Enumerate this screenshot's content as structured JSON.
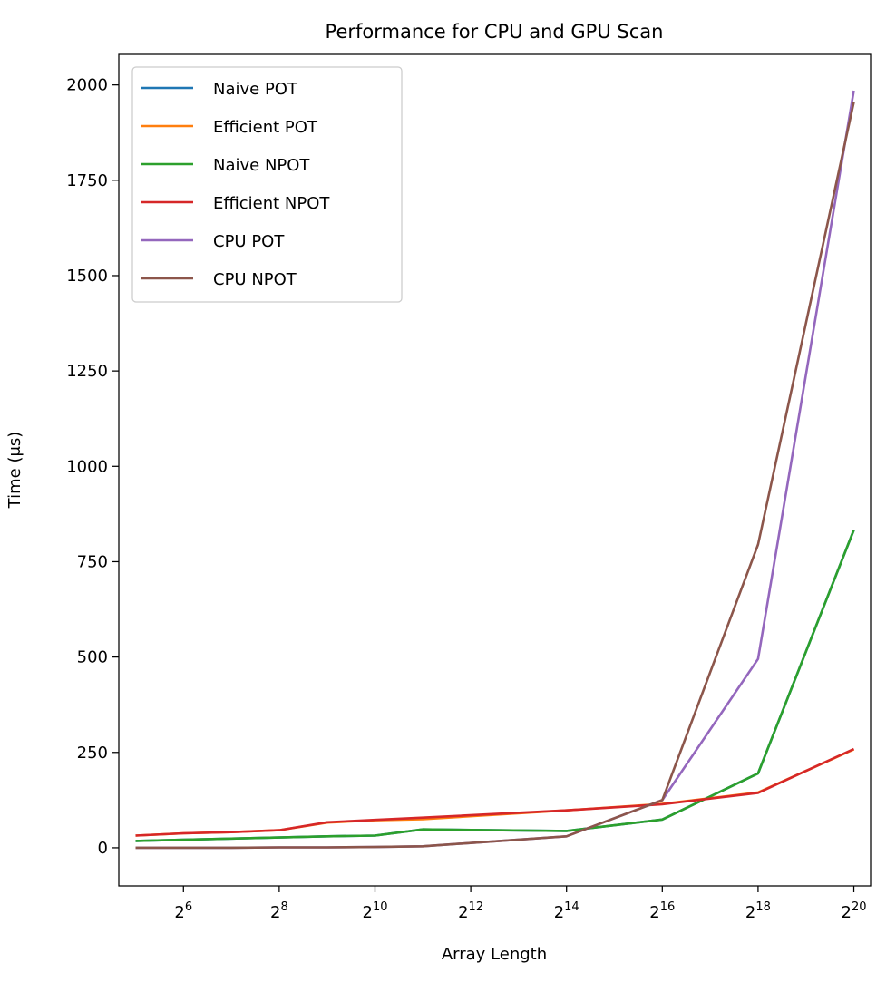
{
  "chart_data": {
    "type": "line",
    "title": "Performance for CPU and GPU Scan",
    "xlabel": "Array Length",
    "ylabel": "Time (μs)",
    "x_scale": "log2",
    "x": [
      32,
      64,
      128,
      256,
      512,
      1024,
      2048,
      4096,
      8192,
      16384,
      32768,
      65536,
      131072,
      262144,
      524288,
      1048576
    ],
    "x_ticks": [
      64,
      256,
      1024,
      4096,
      16384,
      65536,
      262144,
      1048576
    ],
    "x_tick_labels": [
      {
        "base": "2",
        "exp": "6"
      },
      {
        "base": "2",
        "exp": "8"
      },
      {
        "base": "2",
        "exp": "10"
      },
      {
        "base": "2",
        "exp": "12"
      },
      {
        "base": "2",
        "exp": "14"
      },
      {
        "base": "2",
        "exp": "16"
      },
      {
        "base": "2",
        "exp": "18"
      },
      {
        "base": "2",
        "exp": "20"
      }
    ],
    "y_ticks": [
      0,
      250,
      500,
      750,
      1000,
      1250,
      1500,
      1750,
      2000
    ],
    "y_tick_labels": [
      "0",
      "250",
      "500",
      "750",
      "1000",
      "1250",
      "1500",
      "1750",
      "2000"
    ],
    "ylim": [
      -100,
      2080
    ],
    "xlim_log2": [
      4.65,
      20.35
    ],
    "legend_position": "top-left",
    "series": [
      {
        "name": "Naive POT",
        "color": "#1f77b4",
        "x": [
          32,
          64,
          128,
          256,
          512,
          1024,
          2048,
          16384,
          65536,
          262144,
          1048576
        ],
        "values": [
          18,
          21,
          24,
          27,
          30,
          32,
          48,
          44,
          74,
          195,
          833
        ]
      },
      {
        "name": "Efficient POT",
        "color": "#ff7f0e",
        "x": [
          32,
          64,
          128,
          256,
          512,
          1024,
          2048,
          16384,
          65536,
          262144,
          1048576
        ],
        "values": [
          32,
          38,
          41,
          46,
          66,
          72,
          75,
          98,
          115,
          145,
          258
        ]
      },
      {
        "name": "Naive NPOT",
        "color": "#2ca02c",
        "x": [
          32,
          64,
          128,
          256,
          512,
          1024,
          2048,
          16384,
          65536,
          262144,
          1048576
        ],
        "values": [
          18,
          21,
          24,
          27,
          30,
          32,
          48,
          44,
          74,
          195,
          833
        ]
      },
      {
        "name": "Efficient NPOT",
        "color": "#d62728",
        "x": [
          32,
          64,
          128,
          256,
          512,
          1024,
          2048,
          16384,
          65536,
          262144,
          1048576
        ],
        "values": [
          32,
          38,
          41,
          46,
          67,
          73,
          79,
          98,
          114,
          144,
          259
        ]
      },
      {
        "name": "CPU POT",
        "color": "#9467bd",
        "x": [
          32,
          64,
          128,
          256,
          512,
          1024,
          2048,
          16384,
          65536,
          262144,
          1048576
        ],
        "values": [
          0,
          0,
          0,
          1,
          1,
          2,
          4,
          30,
          125,
          495,
          1985
        ]
      },
      {
        "name": "CPU NPOT",
        "color": "#8c564b",
        "x": [
          32,
          64,
          128,
          256,
          512,
          1024,
          2048,
          16384,
          65536,
          262144,
          1048576
        ],
        "values": [
          0,
          0,
          0,
          1,
          1,
          2,
          4,
          30,
          125,
          795,
          1955
        ]
      }
    ]
  }
}
